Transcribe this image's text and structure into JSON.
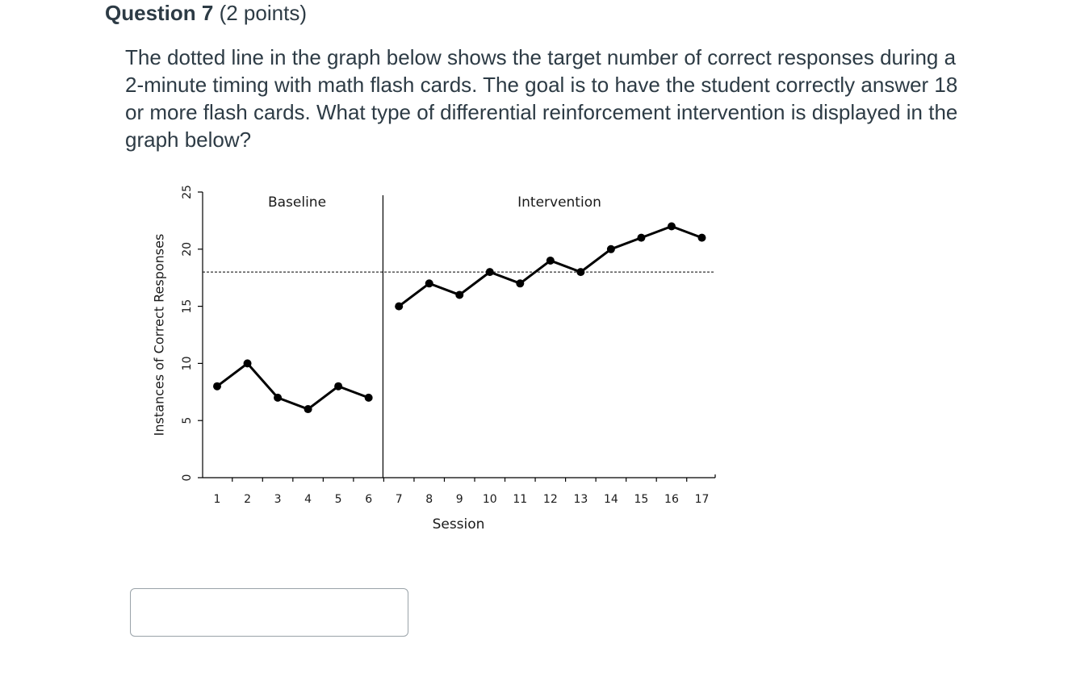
{
  "question": {
    "title": "Question 7",
    "points": "(2 points)",
    "text": "The dotted line in the graph below shows the target number of correct responses during a 2-minute timing with math flash cards. The goal is to have the student correctly answer 18 or more flash cards. What type of differential reinforcement intervention is displayed in the graph below?"
  },
  "answer": {
    "value": "",
    "placeholder": ""
  },
  "chart_data": {
    "type": "line",
    "ylabel": "Instances of Correct Responses",
    "xlabel": "Session",
    "ylim": [
      0,
      25
    ],
    "yticks": [
      0,
      5,
      10,
      15,
      20,
      25
    ],
    "xticks": [
      1,
      2,
      3,
      4,
      5,
      6,
      7,
      8,
      9,
      10,
      11,
      12,
      13,
      14,
      15,
      16,
      17
    ],
    "phase_labels": [
      "Baseline",
      "Intervention"
    ],
    "phase_change_after_session": 6.5,
    "target_line": 18,
    "target_line_style": "dotted",
    "series": [
      {
        "x": [
          1,
          2,
          3,
          4,
          5,
          6
        ],
        "values": [
          8,
          10,
          7,
          6,
          8,
          7
        ]
      },
      {
        "x": [
          7,
          8,
          9,
          10,
          11,
          12,
          13,
          14,
          15,
          16,
          17
        ],
        "values": [
          15,
          17,
          16,
          18,
          17,
          19,
          18,
          20,
          21,
          22,
          21
        ]
      }
    ],
    "line_color": "#000000",
    "marker": "circle",
    "grid": false
  }
}
